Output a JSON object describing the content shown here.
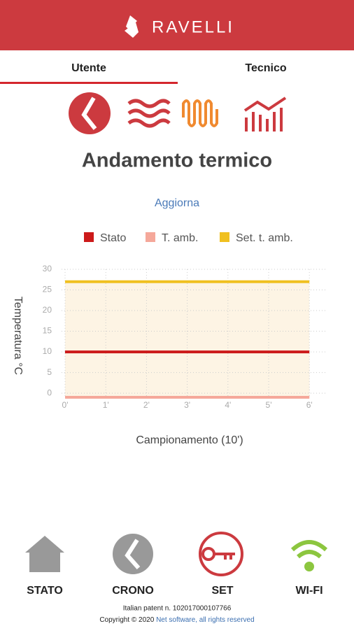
{
  "header": {
    "brand": "RAVELLI"
  },
  "tabs": [
    "Utente",
    "Tecnico"
  ],
  "title": "Andamento termico",
  "refresh": "Aggiorna",
  "chart_data": {
    "type": "line",
    "categories": [
      "0'",
      "1'",
      "2'",
      "3'",
      "4'",
      "5'",
      "6'"
    ],
    "x_label": "Campionamento (10')",
    "y_label": "Temperatura °C",
    "series": [
      {
        "name": "Stato",
        "color": "#cc1a1a",
        "fill": "#f9ddd3",
        "values": [
          10,
          10,
          10,
          10,
          10,
          10,
          10
        ]
      },
      {
        "name": "T. amb.",
        "color": "#f5a89a",
        "values": [
          -1,
          -1,
          -1,
          -1,
          -1,
          -1,
          -1
        ]
      },
      {
        "name": "Set. t. amb.",
        "color": "#f0c020",
        "fill": "#fdf4e4",
        "values": [
          27,
          27,
          27,
          27,
          27,
          27,
          27
        ]
      }
    ],
    "ylim": [
      -1,
      30
    ],
    "yticks": [
      0,
      5,
      10,
      15,
      20,
      25,
      30
    ],
    "grid": true
  },
  "nav": [
    "STATO",
    "CRONO",
    "SET",
    "WI-FI"
  ],
  "footer": {
    "patent": "Italian patent n. 102017000107766",
    "copyright": "Copyright © 2020",
    "company": "Net software, all rights reserved"
  }
}
